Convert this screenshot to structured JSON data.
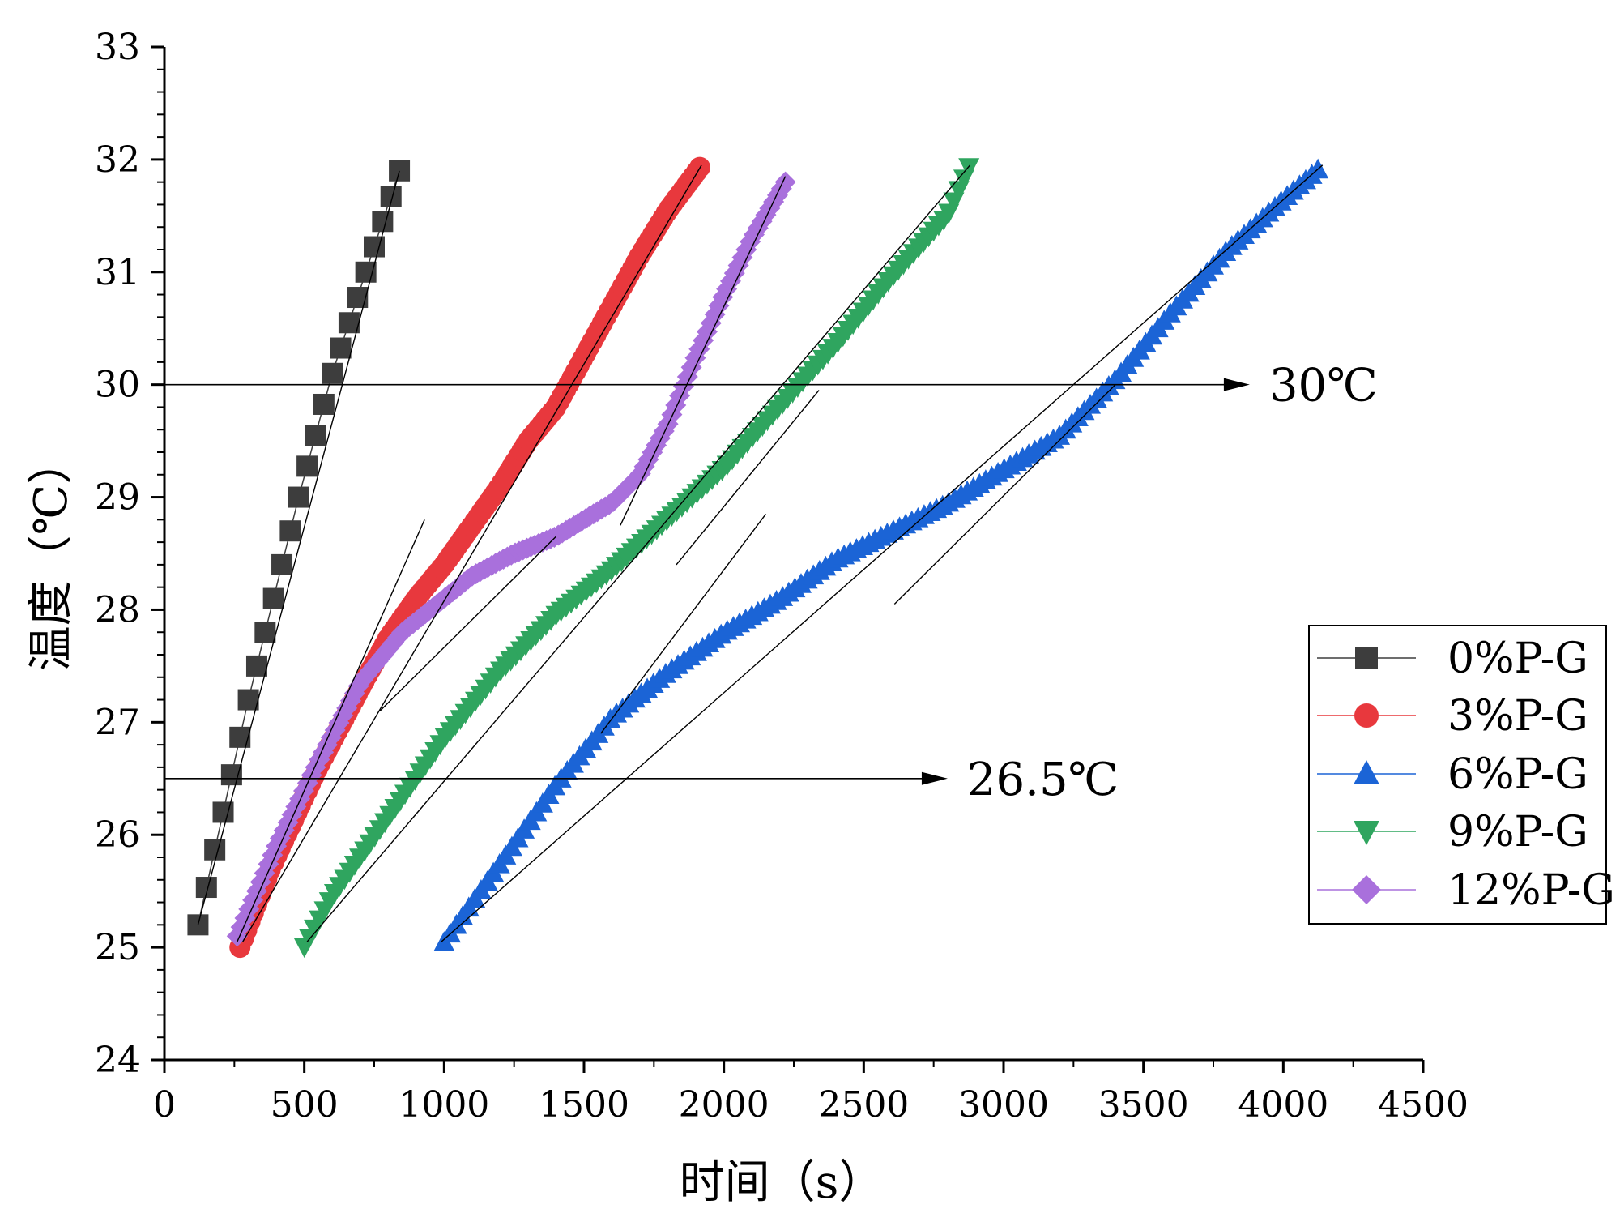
{
  "chart_data": {
    "type": "scatter",
    "title": "",
    "xlabel": "时间（s）",
    "ylabel": "温度（℃）",
    "xlim": [
      0,
      4500
    ],
    "ylim": [
      24,
      33
    ],
    "xticks": [
      0,
      500,
      1000,
      1500,
      2000,
      2500,
      3000,
      3500,
      4000,
      4500
    ],
    "yticks": [
      24,
      25,
      26,
      27,
      28,
      29,
      30,
      31,
      32,
      33
    ],
    "x_tick_labels": [
      "0",
      "500",
      "1000",
      "1500",
      "2000",
      "2500",
      "3000",
      "3500",
      "4000",
      "4500"
    ],
    "y_tick_labels": [
      "24",
      "25",
      "26",
      "27",
      "28",
      "29",
      "30",
      "31",
      "32",
      "33"
    ],
    "grid": false,
    "legend_position": "right",
    "series": [
      {
        "name": "0%P-G",
        "color": "#3d3d3d",
        "marker": "square",
        "marker_step": 30,
        "x": [
          120,
          840
        ],
        "points": [
          [
            120,
            25.2
          ],
          [
            300,
            27.2
          ],
          [
            480,
            29.0
          ],
          [
            600,
            30.1
          ],
          [
            720,
            31.0
          ],
          [
            840,
            31.9
          ]
        ]
      },
      {
        "name": "3%P-G",
        "color": "#e8383d",
        "marker": "circle",
        "marker_step": 12,
        "points": [
          [
            270,
            25.0
          ],
          [
            380,
            25.7
          ],
          [
            550,
            26.6
          ],
          [
            700,
            27.3
          ],
          [
            800,
            27.75
          ],
          [
            900,
            28.1
          ],
          [
            1000,
            28.4
          ],
          [
            1100,
            28.75
          ],
          [
            1200,
            29.1
          ],
          [
            1300,
            29.5
          ],
          [
            1400,
            29.8
          ],
          [
            1500,
            30.25
          ],
          [
            1600,
            30.7
          ],
          [
            1700,
            31.15
          ],
          [
            1800,
            31.55
          ],
          [
            1920,
            31.95
          ]
        ]
      },
      {
        "name": "6%P-G",
        "color": "#1b64d6",
        "marker": "triangle-up",
        "marker_step": 22,
        "points": [
          [
            1000,
            25.05
          ],
          [
            1200,
            25.75
          ],
          [
            1400,
            26.45
          ],
          [
            1600,
            27.05
          ],
          [
            1800,
            27.45
          ],
          [
            2000,
            27.8
          ],
          [
            2200,
            28.1
          ],
          [
            2400,
            28.45
          ],
          [
            2600,
            28.7
          ],
          [
            2800,
            28.95
          ],
          [
            3000,
            29.25
          ],
          [
            3200,
            29.55
          ],
          [
            3400,
            30.05
          ],
          [
            3600,
            30.65
          ],
          [
            3800,
            31.2
          ],
          [
            4000,
            31.65
          ],
          [
            4140,
            31.95
          ]
        ]
      },
      {
        "name": "9%P-G",
        "color": "#2fa55f",
        "marker": "triangle-down",
        "marker_step": 18,
        "points": [
          [
            500,
            25.0
          ],
          [
            600,
            25.45
          ],
          [
            800,
            26.15
          ],
          [
            1000,
            26.85
          ],
          [
            1200,
            27.45
          ],
          [
            1400,
            27.95
          ],
          [
            1600,
            28.35
          ],
          [
            1800,
            28.8
          ],
          [
            2000,
            29.25
          ],
          [
            2200,
            29.8
          ],
          [
            2400,
            30.35
          ],
          [
            2600,
            30.95
          ],
          [
            2800,
            31.5
          ],
          [
            2880,
            31.95
          ]
        ]
      },
      {
        "name": "12%P-G",
        "color": "#a970dc",
        "marker": "diamond",
        "marker_step": 14,
        "points": [
          [
            260,
            25.1
          ],
          [
            400,
            25.9
          ],
          [
            550,
            26.65
          ],
          [
            700,
            27.35
          ],
          [
            850,
            27.8
          ],
          [
            1000,
            28.1
          ],
          [
            1100,
            28.3
          ],
          [
            1250,
            28.5
          ],
          [
            1400,
            28.65
          ],
          [
            1500,
            28.8
          ],
          [
            1600,
            28.95
          ],
          [
            1700,
            29.2
          ],
          [
            1800,
            29.65
          ],
          [
            1900,
            30.25
          ],
          [
            2000,
            30.8
          ],
          [
            2100,
            31.3
          ],
          [
            2220,
            31.8
          ]
        ]
      }
    ],
    "fit_lines": [
      {
        "series": "0%P-G",
        "x1": 120,
        "y1": 25.2,
        "x2": 840,
        "y2": 31.9
      },
      {
        "series": "3%P-G",
        "x1": 280,
        "y1": 25.05,
        "x2": 1920,
        "y2": 31.95
      },
      {
        "series": "6%P-G",
        "x1": 990,
        "y1": 25.05,
        "x2": 4140,
        "y2": 31.95
      },
      {
        "series": "9%P-G",
        "x1": 510,
        "y1": 25.05,
        "x2": 2880,
        "y2": 31.95
      },
      {
        "series": "12%P-G",
        "x1": 1630,
        "y1": 28.75,
        "x2": 2220,
        "y2": 31.85
      },
      {
        "series": "0%P-G",
        "x1": 260,
        "y1": 25.05,
        "x2": 930,
        "y2": 28.8
      },
      {
        "series": "3%P-G",
        "x1": 770,
        "y1": 27.1,
        "x2": 1400,
        "y2": 28.65
      },
      {
        "series": "6%P-G",
        "x1": 1560,
        "y1": 26.9,
        "x2": 2150,
        "y2": 28.85
      },
      {
        "series": "9%P-G",
        "x1": 1830,
        "y1": 28.4,
        "x2": 2340,
        "y2": 29.95
      },
      {
        "series": "6%P-G",
        "x1": 2610,
        "y1": 28.05,
        "x2": 3400,
        "y2": 30.0
      }
    ],
    "annotations": [
      {
        "label": "30℃",
        "y": 30,
        "x_start": 0,
        "x_end": 3880
      },
      {
        "label": "26.5℃",
        "y": 26.5,
        "x_start": 0,
        "x_end": 2800
      }
    ]
  }
}
